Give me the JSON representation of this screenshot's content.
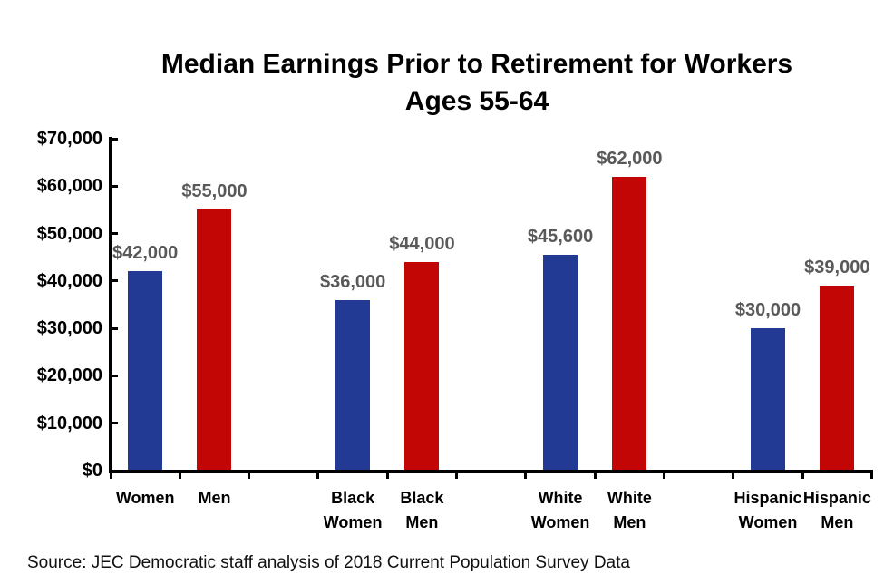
{
  "chart_data": {
    "type": "bar",
    "title_line1": "Median Earnings Prior to Retirement for Workers",
    "title_line2": "Ages 55-64",
    "xlabel": "",
    "ylabel": "",
    "ylim": [
      0,
      70000
    ],
    "ytick_interval": 10000,
    "ytick_labels": [
      "$0",
      "$10,000",
      "$20,000",
      "$30,000",
      "$40,000",
      "$50,000",
      "$60,000",
      "$70,000"
    ],
    "grid": false,
    "legend": false,
    "colors": {
      "women_blue": "#233A95",
      "men_red": "#C20505"
    },
    "data_label_color": "#595959",
    "categories": [
      "Women",
      "Men",
      "Black Women",
      "Black Men",
      "White Women",
      "White Men",
      "Hispanic Women",
      "Hispanic Men"
    ],
    "series": [
      {
        "name": "Median earnings",
        "values": [
          42000,
          55000,
          36000,
          44000,
          45600,
          62000,
          30000,
          39000
        ]
      }
    ],
    "bars": [
      {
        "category": "Women",
        "value": 42000,
        "label": "$42,000",
        "color_key": "women_blue",
        "slot": 0
      },
      {
        "category": "Men",
        "value": 55000,
        "label": "$55,000",
        "color_key": "men_red",
        "slot": 1
      },
      {
        "category": "Black Women",
        "value": 36000,
        "label": "$36,000",
        "color_key": "women_blue",
        "slot": 3
      },
      {
        "category": "Black Men",
        "value": 44000,
        "label": "$44,000",
        "color_key": "men_red",
        "slot": 4
      },
      {
        "category": "White Women",
        "value": 45600,
        "label": "$45,600",
        "color_key": "women_blue",
        "slot": 6
      },
      {
        "category": "White Men",
        "value": 62000,
        "label": "$62,000",
        "color_key": "men_red",
        "slot": 7
      },
      {
        "category": "Hispanic Women",
        "value": 30000,
        "label": "$30,000",
        "color_key": "women_blue",
        "slot": 9
      },
      {
        "category": "Hispanic Men",
        "value": 39000,
        "label": "$39,000",
        "color_key": "men_red",
        "slot": 10
      }
    ],
    "source": "Source: JEC Democratic staff analysis of 2018 Current Population Survey Data"
  }
}
